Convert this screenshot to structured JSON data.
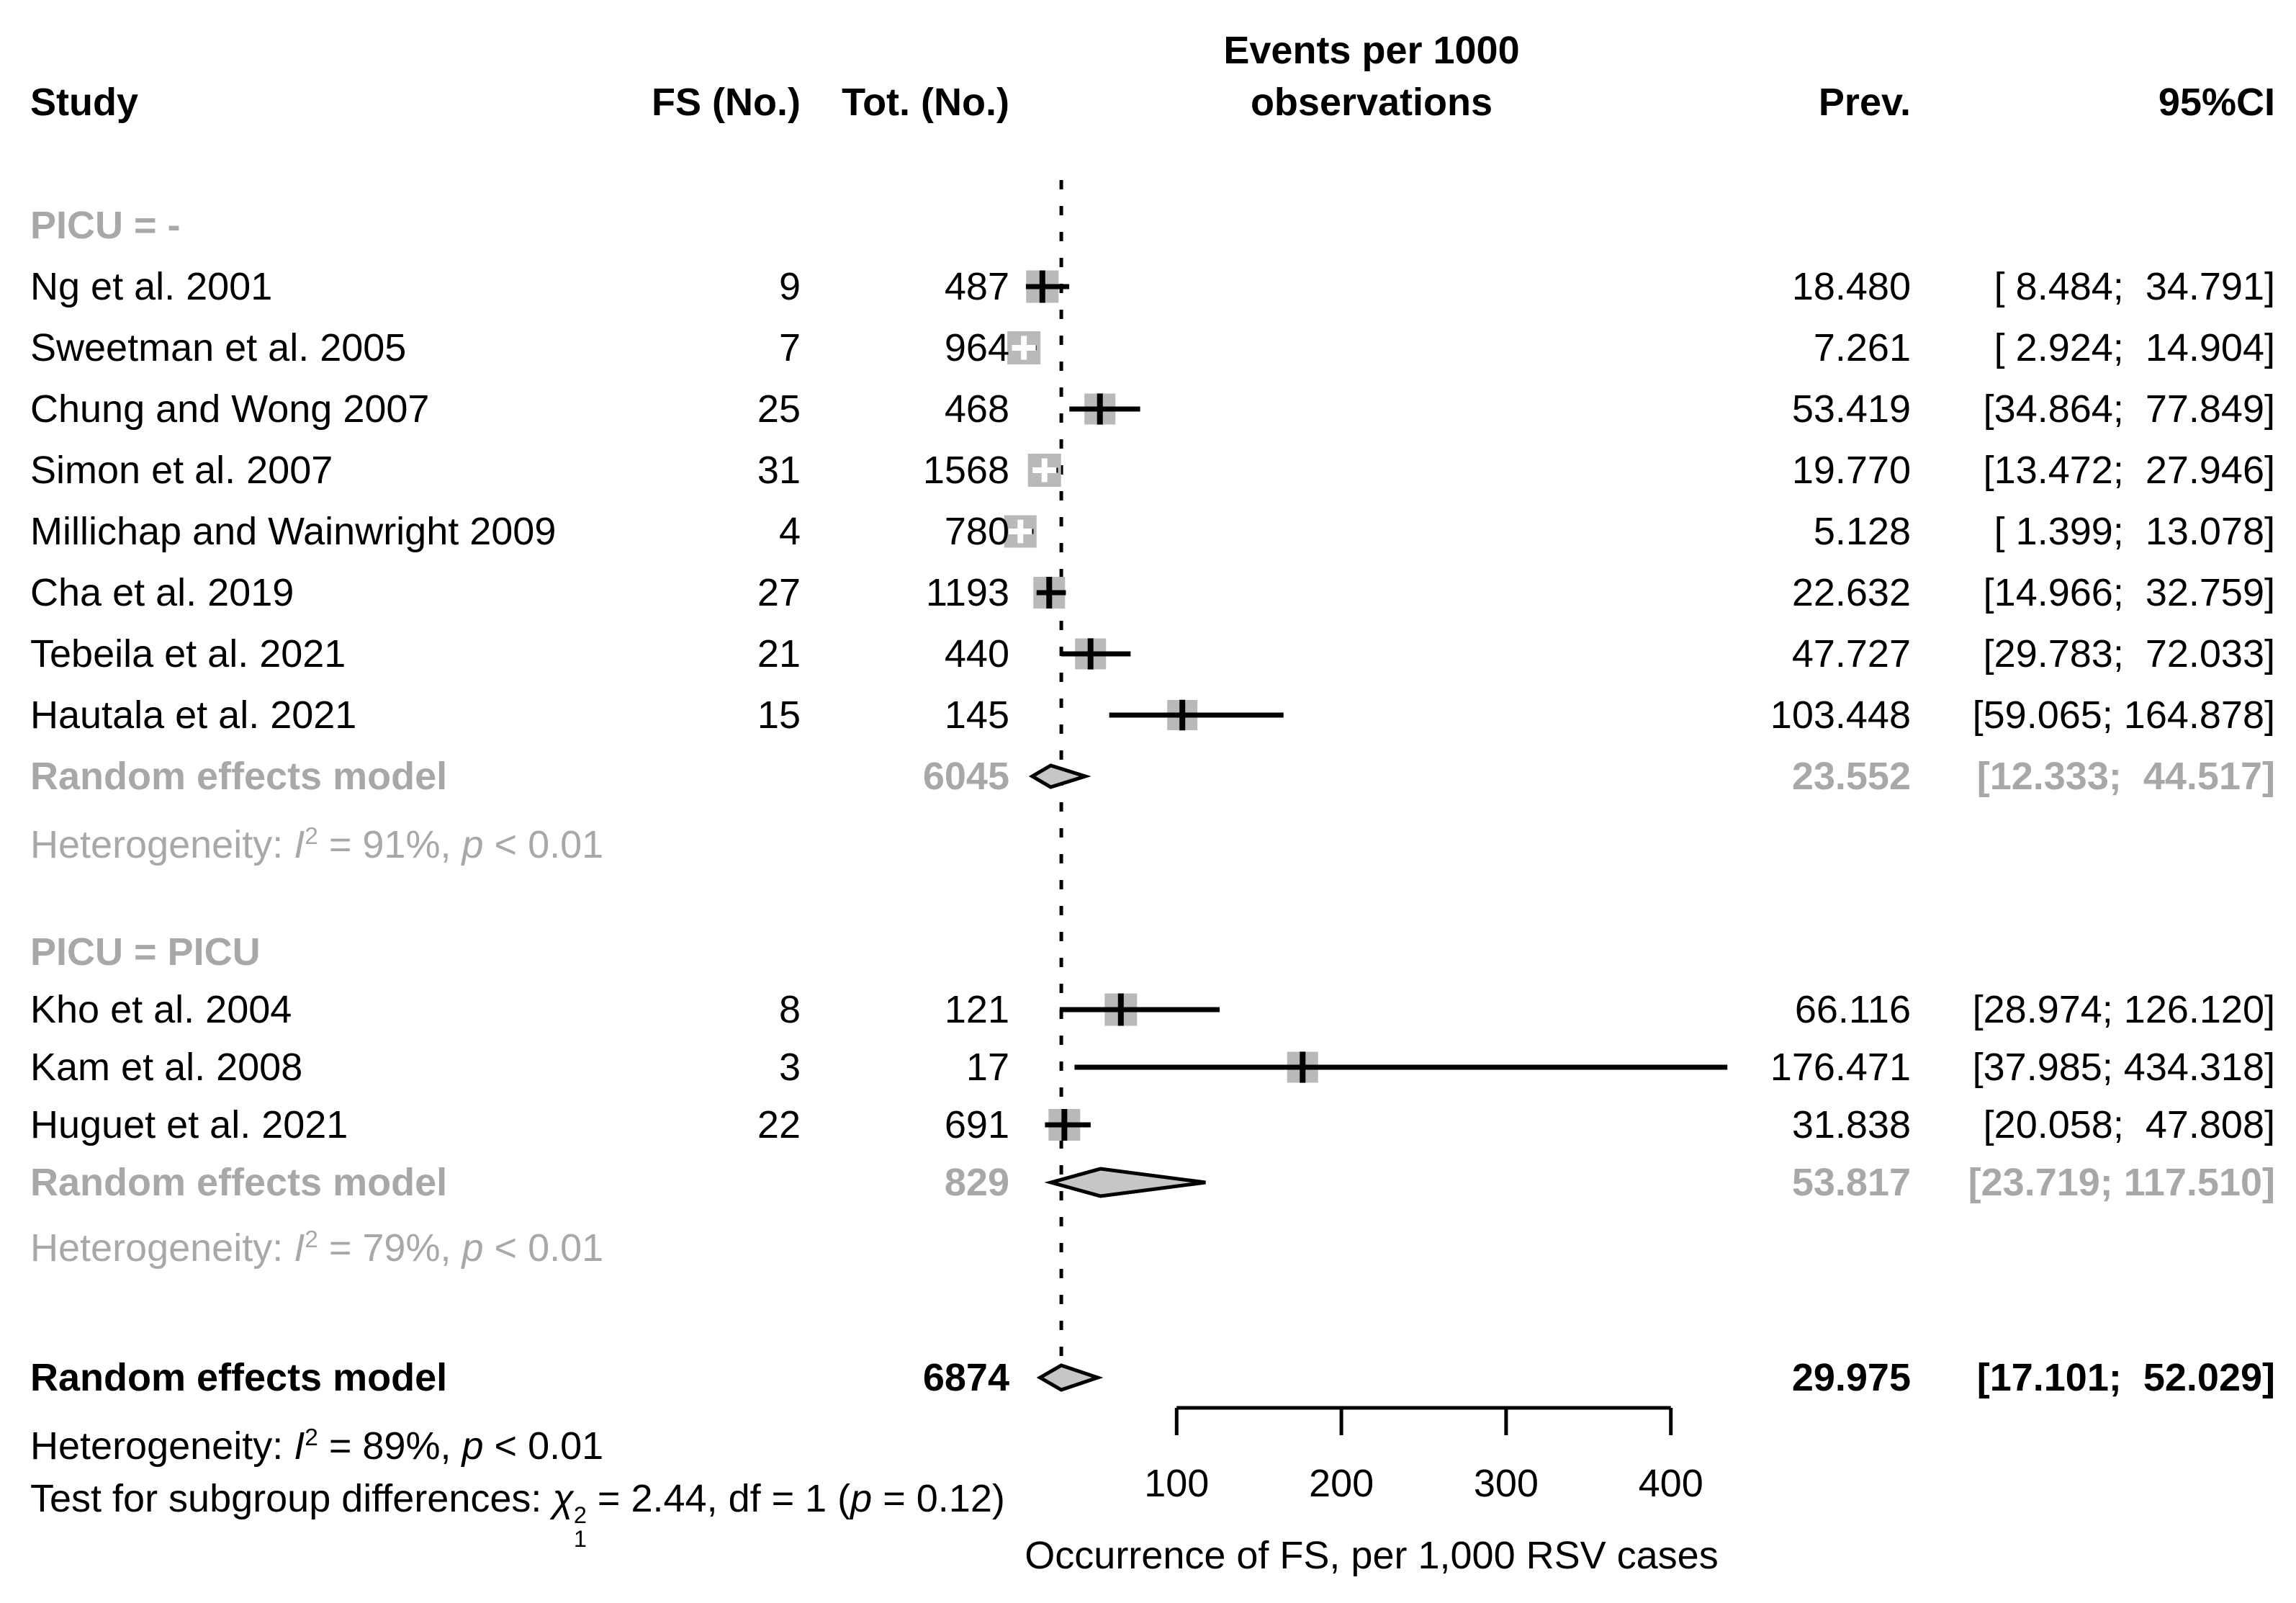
{
  "chart_data": {
    "type": "forest-plot",
    "columns": {
      "study": "Study",
      "fs": "FS (No.)",
      "tot": "Tot. (No.)",
      "events1": "Events per 1000",
      "events2": "observations",
      "prev": "Prev.",
      "ci": "95%CI"
    },
    "axis": {
      "ticks": [
        100,
        200,
        300,
        400
      ],
      "tick_labels": [
        "100",
        "200",
        "300",
        "400"
      ],
      "range_shown": [
        100,
        400
      ],
      "title": "Occurrence of FS, per 1,000 RSV cases",
      "reference_line": 29.975
    },
    "colors": {
      "text": "#000000",
      "gray_text": "#a8a8a8",
      "square": "#b9b9b9",
      "diamond": "#c6c6c6",
      "line": "#000000"
    },
    "groups": [
      {
        "label": "PICU = -",
        "studies": [
          {
            "name": "Ng et al. 2001",
            "fs": "9",
            "tot": "487",
            "prev": "18.480",
            "ci": "[ 8.484;  34.791]",
            "est": 18.48,
            "lo": 8.484,
            "hi": 34.791,
            "sq": 45,
            "marker": "black"
          },
          {
            "name": "Sweetman et al. 2005",
            "fs": "7",
            "tot": "964",
            "prev": "7.261",
            "ci": "[ 2.924;  14.904]",
            "est": 7.261,
            "lo": 2.924,
            "hi": 14.904,
            "sq": 46,
            "marker": "white"
          },
          {
            "name": "Chung and Wong 2007",
            "fs": "25",
            "tot": "468",
            "prev": "53.419",
            "ci": "[34.864;  77.849]",
            "est": 53.419,
            "lo": 34.864,
            "hi": 77.849,
            "sq": 43,
            "marker": "black"
          },
          {
            "name": "Simon et al. 2007",
            "fs": "31",
            "tot": "1568",
            "prev": "19.770",
            "ci": "[13.472;  27.946]",
            "est": 19.77,
            "lo": 13.472,
            "hi": 27.946,
            "sq": 46,
            "marker": "white"
          },
          {
            "name": "Millichap and Wainwright 2009",
            "fs": "4",
            "tot": "780",
            "prev": "5.128",
            "ci": "[ 1.399;  13.078]",
            "est": 5.128,
            "lo": 1.399,
            "hi": 13.078,
            "sq": 45,
            "marker": "white"
          },
          {
            "name": "Cha et al. 2019",
            "fs": "27",
            "tot": "1193",
            "prev": "22.632",
            "ci": "[14.966;  32.759]",
            "est": 22.632,
            "lo": 14.966,
            "hi": 32.759,
            "sq": 44,
            "marker": "black"
          },
          {
            "name": "Tebeila et al. 2021",
            "fs": "21",
            "tot": "440",
            "prev": "47.727",
            "ci": "[29.783;  72.033]",
            "est": 47.727,
            "lo": 29.783,
            "hi": 72.033,
            "sq": 43,
            "marker": "black"
          },
          {
            "name": "Hautala et al. 2021",
            "fs": "15",
            "tot": "145",
            "prev": "103.448",
            "ci": "[59.065; 164.878]",
            "est": 103.448,
            "lo": 59.065,
            "hi": 164.878,
            "sq": 42,
            "marker": "black"
          }
        ],
        "summary": {
          "label": "Random effects model",
          "tot": "6045",
          "prev": "23.552",
          "ci": "[12.333;  44.517]",
          "est": 23.552,
          "lo": 12.333,
          "hi": 44.517
        },
        "heterogeneity": [
          {
            "t": "Heterogeneity: "
          },
          {
            "t": "I",
            "i": true
          },
          {
            "t": "2",
            "sup": true
          },
          {
            "t": " = 91%, "
          },
          {
            "t": "p",
            "i": true
          },
          {
            "t": " < 0.01"
          }
        ]
      },
      {
        "label": "PICU = PICU",
        "studies": [
          {
            "name": "Kho et al. 2004",
            "fs": "8",
            "tot": "121",
            "prev": "66.116",
            "ci": "[28.974; 126.120]",
            "est": 66.116,
            "lo": 28.974,
            "hi": 126.12,
            "sq": 45,
            "marker": "black"
          },
          {
            "name": "Kam et al. 2008",
            "fs": "3",
            "tot": "17",
            "prev": "176.471",
            "ci": "[37.985; 434.318]",
            "est": 176.471,
            "lo": 37.985,
            "hi": 434.318,
            "sq": 43,
            "marker": "black"
          },
          {
            "name": "Huguet et al. 2021",
            "fs": "22",
            "tot": "691",
            "prev": "31.838",
            "ci": "[20.058;  47.808]",
            "est": 31.838,
            "lo": 20.058,
            "hi": 47.808,
            "sq": 44,
            "marker": "black"
          }
        ],
        "summary": {
          "label": "Random effects model",
          "tot": "829",
          "prev": "53.817",
          "ci": "[23.719; 117.510]",
          "est": 53.817,
          "lo": 23.719,
          "hi": 117.51
        },
        "heterogeneity": [
          {
            "t": "Heterogeneity: "
          },
          {
            "t": "I",
            "i": true
          },
          {
            "t": "2",
            "sup": true
          },
          {
            "t": " = 79%, "
          },
          {
            "t": "p",
            "i": true
          },
          {
            "t": " < 0.01"
          }
        ]
      }
    ],
    "overall": {
      "summary": {
        "label": "Random effects model",
        "tot": "6874",
        "prev": "29.975",
        "ci": "[17.101;  52.029]",
        "est": 29.975,
        "lo": 17.101,
        "hi": 52.029
      },
      "heterogeneity": [
        {
          "t": "Heterogeneity: "
        },
        {
          "t": "I",
          "i": true
        },
        {
          "t": "2",
          "sup": true
        },
        {
          "t": " = 89%, "
        },
        {
          "t": "p",
          "i": true
        },
        {
          "t": " < 0.01"
        }
      ],
      "subgroup_test": [
        {
          "t": "Test for subgroup differences: "
        },
        {
          "t": "χ",
          "i": true
        },
        {
          "supsub": {
            "sup": "2",
            "sub": "1"
          }
        },
        {
          "t": " = 2.44, df = 1 ("
        },
        {
          "t": "p",
          "i": true
        },
        {
          "t": " = 0.12)"
        }
      ]
    }
  }
}
